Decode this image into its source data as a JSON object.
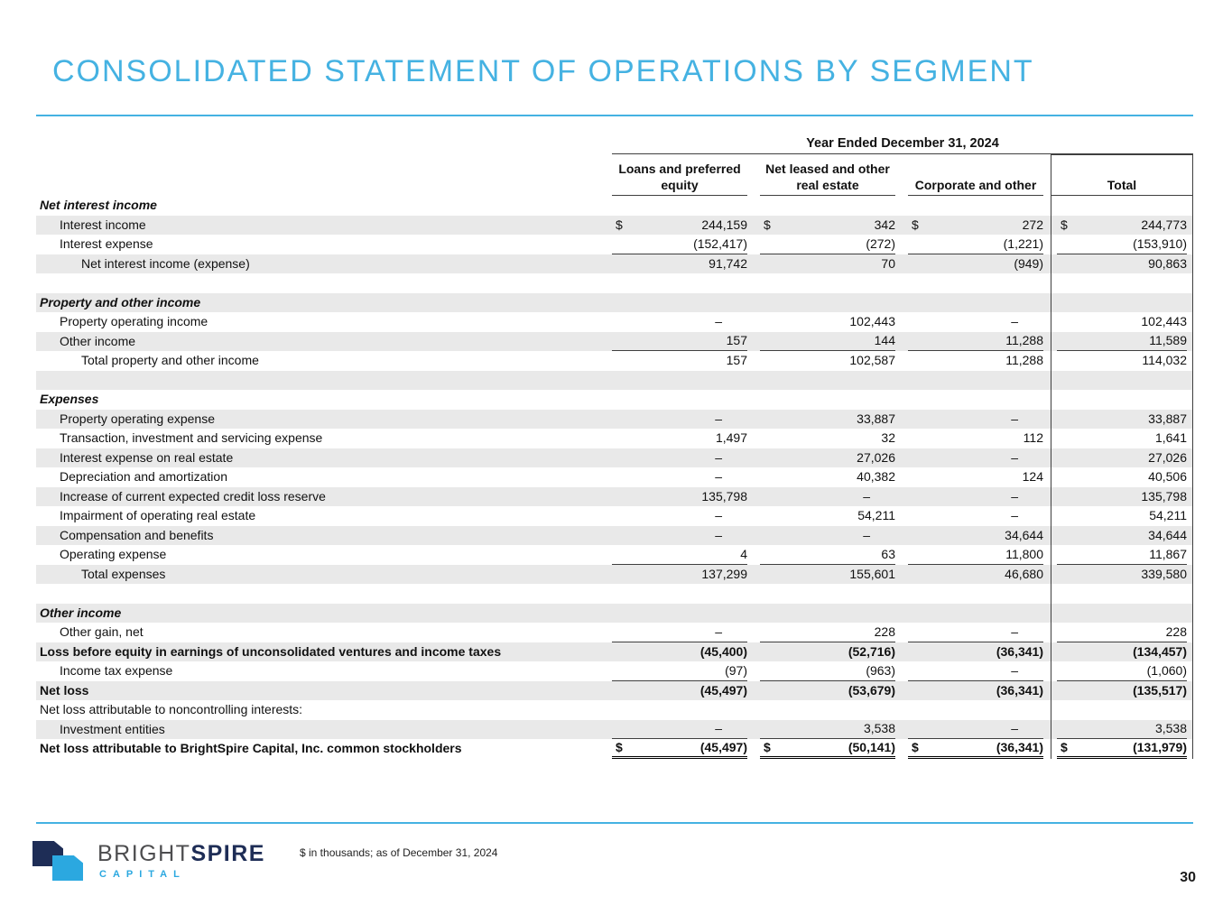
{
  "colors": {
    "accent_blue": "#45B2E2",
    "row_shade": "#E9E9E9",
    "table_line": "#3F3F3F",
    "logo_navy": "#1E2D56",
    "logo_blue": "#2BA8E0",
    "logo_gray": "#4D4D4F"
  },
  "header": {
    "title": "CONSOLIDATED STATEMENT OF OPERATIONS BY SEGMENT"
  },
  "table": {
    "period_header": "Year Ended December 31, 2024",
    "columns": [
      "Loans and preferred equity",
      "Net leased and other real estate",
      "Corporate and other",
      "Total"
    ],
    "rows": [
      {
        "type": "section",
        "label": "Net interest income",
        "shaded": false
      },
      {
        "type": "data",
        "label": "Interest income",
        "indent": 1,
        "shaded": true,
        "dollar": true,
        "values": [
          "244,159",
          "342",
          "272",
          "244,773"
        ]
      },
      {
        "type": "data",
        "label": "Interest expense",
        "indent": 1,
        "shaded": false,
        "rule": true,
        "values": [
          "(152,417)",
          "(272)",
          "(1,221)",
          "(153,910)"
        ]
      },
      {
        "type": "data",
        "label": "Net interest income (expense)",
        "indent": 2,
        "shaded": true,
        "values": [
          "91,742",
          "70",
          "(949)",
          "90,863"
        ]
      },
      {
        "type": "blank",
        "shaded": false
      },
      {
        "type": "section",
        "label": "Property and other income",
        "shaded": true
      },
      {
        "type": "data",
        "label": "Property operating income",
        "indent": 1,
        "shaded": false,
        "values": [
          "–",
          "102,443",
          "–",
          "102,443"
        ]
      },
      {
        "type": "data",
        "label": "Other income",
        "indent": 1,
        "shaded": true,
        "rule": true,
        "values": [
          "157",
          "144",
          "11,288",
          "11,589"
        ]
      },
      {
        "type": "data",
        "label": "Total property and other income",
        "indent": 2,
        "shaded": false,
        "values": [
          "157",
          "102,587",
          "11,288",
          "114,032"
        ]
      },
      {
        "type": "blank",
        "shaded": true
      },
      {
        "type": "section",
        "label": "Expenses",
        "shaded": false
      },
      {
        "type": "data",
        "label": "Property operating expense",
        "indent": 1,
        "shaded": true,
        "values": [
          "–",
          "33,887",
          "–",
          "33,887"
        ]
      },
      {
        "type": "data",
        "label": "Transaction, investment and servicing expense",
        "indent": 1,
        "shaded": false,
        "values": [
          "1,497",
          "32",
          "112",
          "1,641"
        ]
      },
      {
        "type": "data",
        "label": "Interest expense on real estate",
        "indent": 1,
        "shaded": true,
        "values": [
          "–",
          "27,026",
          "–",
          "27,026"
        ]
      },
      {
        "type": "data",
        "label": "Depreciation and amortization",
        "indent": 1,
        "shaded": false,
        "values": [
          "–",
          "40,382",
          "124",
          "40,506"
        ]
      },
      {
        "type": "data",
        "label": "Increase of current expected credit loss reserve",
        "indent": 1,
        "shaded": true,
        "values": [
          "135,798",
          "–",
          "–",
          "135,798"
        ]
      },
      {
        "type": "data",
        "label": "Impairment of operating real estate",
        "indent": 1,
        "shaded": false,
        "values": [
          "–",
          "54,211",
          "–",
          "54,211"
        ]
      },
      {
        "type": "data",
        "label": "Compensation and benefits",
        "indent": 1,
        "shaded": true,
        "values": [
          "–",
          "–",
          "34,644",
          "34,644"
        ]
      },
      {
        "type": "data",
        "label": "Operating expense",
        "indent": 1,
        "shaded": false,
        "rule": true,
        "values": [
          "4",
          "63",
          "11,800",
          "11,867"
        ]
      },
      {
        "type": "data",
        "label": "Total expenses",
        "indent": 2,
        "shaded": true,
        "values": [
          "137,299",
          "155,601",
          "46,680",
          "339,580"
        ]
      },
      {
        "type": "blank",
        "shaded": false
      },
      {
        "type": "section",
        "label": "Other income",
        "shaded": true
      },
      {
        "type": "data",
        "label": "Other gain, net",
        "indent": 1,
        "shaded": false,
        "rule": true,
        "values": [
          "–",
          "228",
          "–",
          "228"
        ]
      },
      {
        "type": "data",
        "label": "Loss before equity in earnings of unconsolidated ventures and income taxes",
        "indent": 0,
        "bold": true,
        "shaded": true,
        "values": [
          "(45,400)",
          "(52,716)",
          "(36,341)",
          "(134,457)"
        ]
      },
      {
        "type": "data",
        "label": "Income tax expense",
        "indent": 1,
        "shaded": false,
        "rule": true,
        "values": [
          "(97)",
          "(963)",
          "–",
          "(1,060)"
        ]
      },
      {
        "type": "data",
        "label": "Net loss",
        "indent": 0,
        "bold": true,
        "shaded": true,
        "values": [
          "(45,497)",
          "(53,679)",
          "(36,341)",
          "(135,517)"
        ]
      },
      {
        "type": "data",
        "label": "Net loss attributable to noncontrolling interests:",
        "indent": 0,
        "shaded": false,
        "values": [
          "",
          "",
          "",
          ""
        ]
      },
      {
        "type": "data",
        "label": "Investment entities",
        "indent": 1,
        "shaded": true,
        "rule": true,
        "values": [
          "–",
          "3,538",
          "–",
          "3,538"
        ]
      },
      {
        "type": "data",
        "label": "Net loss attributable to BrightSpire Capital, Inc. common stockholders",
        "indent": 0,
        "bold": true,
        "shaded": false,
        "dollar": true,
        "double_rule": true,
        "values": [
          "(45,497)",
          "(50,141)",
          "(36,341)",
          "(131,979)"
        ]
      }
    ]
  },
  "footer": {
    "footnote": "$ in thousands; as of December 31, 2024",
    "page_number": "30",
    "logo": {
      "word_1": "BRIGHT",
      "word_2": "SPIRE",
      "subtitle": "CAPITAL"
    }
  }
}
